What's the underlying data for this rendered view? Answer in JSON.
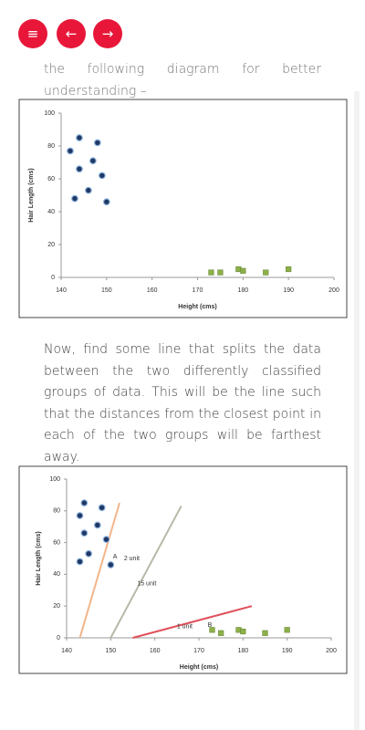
{
  "intro_text": "the following diagram for better understanding –",
  "body_text": "Now, find some line that splits the data between the two differently classified groups of data. This will be the line such that the distances from the closest point in each of the two groups will be farthest away.",
  "figures": [
    {
      "chart_data": {
        "type": "scatter",
        "x_label": "Height (cms)",
        "y_label": "Hair Length (cms)",
        "xlim": [
          140,
          200
        ],
        "ylim": [
          0,
          100
        ],
        "xticks": [
          140,
          150,
          160,
          170,
          180,
          190,
          200
        ],
        "yticks": [
          0,
          20,
          40,
          60,
          80,
          100
        ],
        "series": [
          {
            "color": "#1f3864",
            "x": [
              144,
              148,
              142,
              147,
              144,
              149,
              146,
              143,
              150
            ],
            "values": [
              85,
              82,
              77,
              71,
              66,
              62,
              53,
              48,
              46
            ]
          },
          {
            "color": "#8db04a",
            "x": [
              173,
              175,
              179,
              180,
              185,
              190
            ],
            "values": [
              3,
              3,
              5,
              4,
              3,
              5
            ]
          }
        ]
      }
    },
    {
      "chart_data": {
        "type": "scatter",
        "x_label": "Height (cms)",
        "y_label": "Hair Length (cms)",
        "xlim": [
          140,
          200
        ],
        "ylim": [
          0,
          100
        ],
        "xticks": [
          140,
          150,
          160,
          170,
          180,
          190,
          200
        ],
        "yticks": [
          0,
          20,
          40,
          60,
          80,
          100
        ],
        "series": [
          {
            "color": "#1f3864",
            "x": [
              144,
              148,
              143,
              147,
              144,
              149,
              145,
              143,
              150
            ],
            "values": [
              85,
              82,
              77,
              71,
              66,
              62,
              53,
              48,
              46
            ]
          },
          {
            "color": "#8db04a",
            "x": [
              173,
              175,
              179,
              180,
              185,
              190
            ],
            "values": [
              5,
              3,
              5,
              4,
              3,
              5
            ]
          }
        ],
        "lines": [
          {
            "color": "#f2b58a",
            "x": [
              143,
              152
            ],
            "values": [
              0,
              85
            ]
          },
          {
            "color": "#b8b8a8",
            "x": [
              150,
              166
            ],
            "values": [
              0,
              83
            ]
          },
          {
            "color": "#e0505a",
            "x": [
              155,
              182
            ],
            "values": [
              0,
              20
            ]
          }
        ],
        "annotations": [
          {
            "text": "A",
            "x": 150.5,
            "y": 51
          },
          {
            "text": "2 unit",
            "x": 153,
            "y": 50
          },
          {
            "text": "15 unit",
            "x": 156,
            "y": 34
          },
          {
            "text": "1 unit",
            "x": 165,
            "y": 7
          },
          {
            "text": "B",
            "x": 172,
            "y": 8
          }
        ]
      }
    }
  ]
}
